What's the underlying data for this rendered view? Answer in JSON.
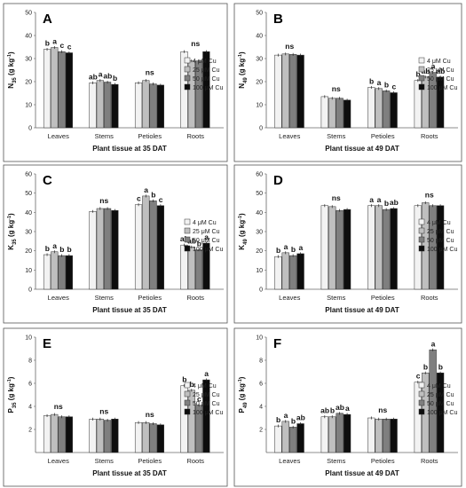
{
  "colors": {
    "s0": "#f2f2f2",
    "s1": "#bfbfbf",
    "s2": "#7f7f7f",
    "s3": "#0d0d0d"
  },
  "chart_data": [
    {
      "type": "bar",
      "panel": "A",
      "ylabel": "N35 (g kg-1)",
      "ylabel_main": "N",
      "ylabel_sub": "35",
      "xlabel": "Plant tissue at 35 DAT",
      "ylim": [
        0,
        50
      ],
      "yticks": [
        0,
        10,
        20,
        30,
        40,
        50
      ],
      "categories": [
        "Leaves",
        "Stems",
        "Petioles",
        "Roots"
      ],
      "series": [
        {
          "name": "4 μM Cu",
          "values": [
            34.0,
            19.5,
            19.5,
            33.0
          ]
        },
        {
          "name": "25 μM Cu",
          "values": [
            34.8,
            20.5,
            20.5,
            29.0
          ]
        },
        {
          "name": "50 μM Cu",
          "values": [
            33.0,
            19.8,
            19.0,
            29.0
          ]
        },
        {
          "name": "100 μM Cu",
          "values": [
            32.5,
            18.8,
            18.5,
            33.0
          ]
        }
      ],
      "letters": [
        [
          "b",
          "a",
          "c",
          "c"
        ],
        [
          "ab",
          "a",
          "ab",
          "b"
        ],
        [
          "ns"
        ],
        [
          "ns"
        ]
      ]
    },
    {
      "type": "bar",
      "panel": "B",
      "ylabel": "N49 (g kg-1)",
      "ylabel_main": "N",
      "ylabel_sub": "49",
      "xlabel": "Plant tissue at 49 DAT",
      "ylim": [
        0,
        50
      ],
      "yticks": [
        0,
        10,
        20,
        30,
        40,
        50
      ],
      "categories": [
        "Leaves",
        "Stems",
        "Petioles",
        "Roots"
      ],
      "series": [
        {
          "name": "4 μM Cu",
          "values": [
            31.5,
            13.5,
            17.5,
            20.5
          ]
        },
        {
          "name": "25 μM Cu",
          "values": [
            32.0,
            12.8,
            17.0,
            22.0
          ]
        },
        {
          "name": "50 μM Cu",
          "values": [
            31.8,
            12.8,
            16.0,
            24.0
          ]
        },
        {
          "name": "100 μM Cu",
          "values": [
            31.5,
            12.0,
            15.2,
            22.0
          ]
        }
      ],
      "letters": [
        [
          "ns"
        ],
        [
          "ns"
        ],
        [
          "b",
          "a",
          "b",
          "c"
        ],
        [
          "b",
          "ab",
          "a",
          "ab"
        ]
      ]
    },
    {
      "type": "bar",
      "panel": "C",
      "ylabel": "K35 (g kg-1)",
      "ylabel_main": "K",
      "ylabel_sub": "35",
      "xlabel": "Plant tissue at 35 DAT",
      "ylim": [
        0,
        60
      ],
      "yticks": [
        0,
        10,
        20,
        30,
        40,
        50,
        60
      ],
      "categories": [
        "Leaves",
        "Stems",
        "Petioles",
        "Roots"
      ],
      "series": [
        {
          "name": "4 μM Cu",
          "values": [
            18.0,
            40.5,
            44.0,
            23.0
          ]
        },
        {
          "name": "25 μM Cu",
          "values": [
            19.5,
            42.0,
            48.5,
            22.0
          ]
        },
        {
          "name": "50 μM Cu",
          "values": [
            17.5,
            42.0,
            46.0,
            20.5
          ]
        },
        {
          "name": "100 μM Cu",
          "values": [
            17.5,
            41.0,
            43.5,
            24.0
          ]
        }
      ],
      "letters": [
        [
          "b",
          "a",
          "b",
          "b"
        ],
        [
          "ns"
        ],
        [
          "c",
          "a",
          "b",
          "c"
        ],
        [
          "ab",
          "ab",
          "b",
          "a"
        ]
      ]
    },
    {
      "type": "bar",
      "panel": "D",
      "ylabel": "K49 (g kg-1)",
      "ylabel_main": "K",
      "ylabel_sub": "49",
      "xlabel": "Plant tissue at 49 DAT",
      "ylim": [
        0,
        60
      ],
      "yticks": [
        0,
        10,
        20,
        30,
        40,
        50,
        60
      ],
      "categories": [
        "Leaves",
        "Stems",
        "Petioles",
        "Roots"
      ],
      "series": [
        {
          "name": "4 μM Cu",
          "values": [
            17.0,
            43.5,
            43.5,
            43.5
          ]
        },
        {
          "name": "25 μM Cu",
          "values": [
            19.0,
            43.0,
            43.5,
            45.0
          ]
        },
        {
          "name": "50 μM Cu",
          "values": [
            17.5,
            41.0,
            41.5,
            43.5
          ]
        },
        {
          "name": "100 μM Cu",
          "values": [
            18.5,
            41.5,
            42.0,
            43.5
          ]
        }
      ],
      "letters": [
        [
          "b",
          "a",
          "b",
          "a"
        ],
        [
          "ns"
        ],
        [
          "a",
          "a",
          "b",
          "ab"
        ],
        [
          "ns"
        ]
      ]
    },
    {
      "type": "bar",
      "panel": "E",
      "ylabel": "P35 (g kg-1)",
      "ylabel_main": "P",
      "ylabel_sub": "35",
      "xlabel": "Plant tissue at 35 DAT",
      "ylim": [
        0,
        10
      ],
      "yticks": [
        2,
        4,
        6,
        8,
        10
      ],
      "categories": [
        "Leaves",
        "Stems",
        "Petioles",
        "Roots"
      ],
      "series": [
        {
          "name": "4 μM Cu",
          "values": [
            3.2,
            2.9,
            2.6,
            5.8
          ]
        },
        {
          "name": "25 μM Cu",
          "values": [
            3.3,
            2.9,
            2.6,
            5.4
          ]
        },
        {
          "name": "50 μM Cu",
          "values": [
            3.1,
            2.8,
            2.5,
            4.1
          ]
        },
        {
          "name": "100 μM Cu",
          "values": [
            3.1,
            2.9,
            2.4,
            6.3
          ]
        }
      ],
      "letters": [
        [
          "ns"
        ],
        [
          "ns"
        ],
        [
          "ns"
        ],
        [
          "b",
          "b",
          "c",
          "a"
        ]
      ]
    },
    {
      "type": "bar",
      "panel": "F",
      "ylabel": "P49 (g kg-1)",
      "ylabel_main": "P",
      "ylabel_sub": "49",
      "xlabel": "Plant tissue at 49 DAT",
      "ylim": [
        0,
        10
      ],
      "yticks": [
        2,
        4,
        6,
        8,
        10
      ],
      "categories": [
        "Leaves",
        "Stems",
        "Petioles",
        "Roots"
      ],
      "series": [
        {
          "name": "4 μM Cu",
          "values": [
            2.3,
            3.1,
            3.0,
            6.1
          ]
        },
        {
          "name": "25 μM Cu",
          "values": [
            2.7,
            3.1,
            2.9,
            6.9
          ]
        },
        {
          "name": "50 μM Cu",
          "values": [
            2.2,
            3.4,
            2.9,
            8.9
          ]
        },
        {
          "name": "100 μM Cu",
          "values": [
            2.5,
            3.3,
            2.9,
            6.9
          ]
        }
      ],
      "letters": [
        [
          "b",
          "a",
          "b",
          "ab"
        ],
        [
          "ab",
          "b",
          "ab",
          "a"
        ],
        [
          "ns"
        ],
        [
          "c",
          "b",
          "a",
          "b"
        ]
      ]
    }
  ]
}
